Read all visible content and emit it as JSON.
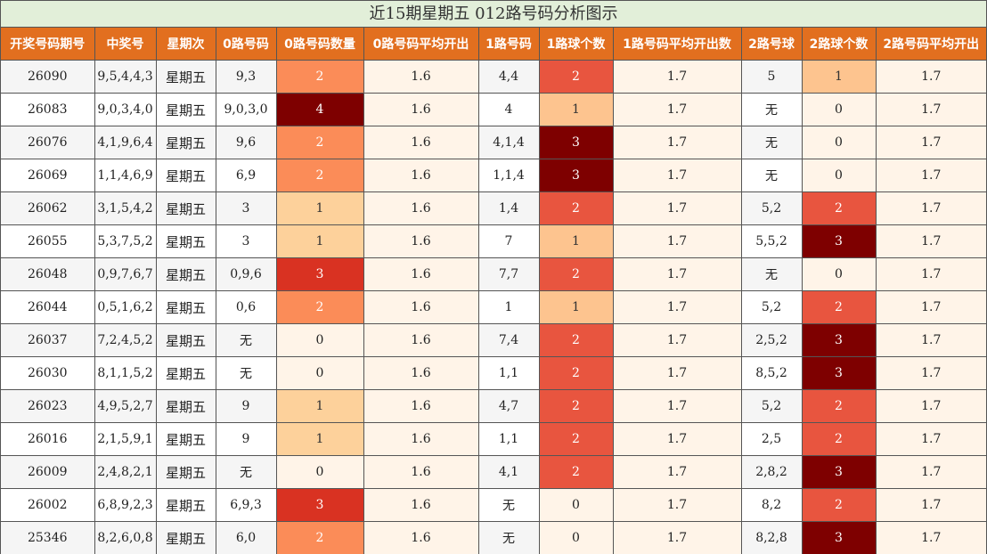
{
  "title": "近15期星期五 012路号码分析图示",
  "headers": [
    "开奖号码期号",
    "中奖号",
    "星期次",
    "0路号码",
    "0路号码数量",
    "0路号码平均开出",
    "1路号码",
    "1路球个数",
    "1路号码平均开出数",
    "2路号球",
    "2路球个数",
    "2路号码平均开出"
  ],
  "rows": [
    [
      "26090",
      "9,5,4,4,3",
      "星期五",
      "9,3",
      "2",
      "1.6",
      "4,4",
      "2",
      "1.7",
      "5",
      "1",
      "1.7"
    ],
    [
      "26083",
      "9,0,3,4,0",
      "星期五",
      "9,0,3,0",
      "4",
      "1.6",
      "4",
      "1",
      "1.7",
      "无",
      "0",
      "1.7"
    ],
    [
      "26076",
      "4,1,9,6,4",
      "星期五",
      "9,6",
      "2",
      "1.6",
      "4,1,4",
      "3",
      "1.7",
      "无",
      "0",
      "1.7"
    ],
    [
      "26069",
      "1,1,4,6,9",
      "星期五",
      "6,9",
      "2",
      "1.6",
      "1,1,4",
      "3",
      "1.7",
      "无",
      "0",
      "1.7"
    ],
    [
      "26062",
      "3,1,5,4,2",
      "星期五",
      "3",
      "1",
      "1.6",
      "1,4",
      "2",
      "1.7",
      "5,2",
      "2",
      "1.7"
    ],
    [
      "26055",
      "5,3,7,5,2",
      "星期五",
      "3",
      "1",
      "1.6",
      "7",
      "1",
      "1.7",
      "5,5,2",
      "3",
      "1.7"
    ],
    [
      "26048",
      "0,9,7,6,7",
      "星期五",
      "0,9,6",
      "3",
      "1.6",
      "7,7",
      "2",
      "1.7",
      "无",
      "0",
      "1.7"
    ],
    [
      "26044",
      "0,5,1,6,2",
      "星期五",
      "0,6",
      "2",
      "1.6",
      "1",
      "1",
      "1.7",
      "5,2",
      "2",
      "1.7"
    ],
    [
      "26037",
      "7,2,4,5,2",
      "星期五",
      "无",
      "0",
      "1.6",
      "7,4",
      "2",
      "1.7",
      "2,5,2",
      "3",
      "1.7"
    ],
    [
      "26030",
      "8,1,1,5,2",
      "星期五",
      "无",
      "0",
      "1.6",
      "1,1",
      "2",
      "1.7",
      "8,5,2",
      "3",
      "1.7"
    ],
    [
      "26023",
      "4,9,5,2,7",
      "星期五",
      "9",
      "1",
      "1.6",
      "4,7",
      "2",
      "1.7",
      "5,2",
      "2",
      "1.7"
    ],
    [
      "26016",
      "2,1,5,9,1",
      "星期五",
      "9",
      "1",
      "1.6",
      "1,1",
      "2",
      "1.7",
      "2,5",
      "2",
      "1.7"
    ],
    [
      "26009",
      "2,4,8,2,1",
      "星期五",
      "无",
      "0",
      "1.6",
      "4,1",
      "2",
      "1.7",
      "2,8,2",
      "3",
      "1.7"
    ],
    [
      "26002",
      "6,8,9,2,3",
      "星期五",
      "6,9,3",
      "3",
      "1.6",
      "无",
      "0",
      "1.7",
      "8,2",
      "2",
      "1.7"
    ],
    [
      "25346",
      "8,2,6,0,8",
      "星期五",
      "6,0",
      "2",
      "1.6",
      "无",
      "0",
      "1.7",
      "8,2,8",
      "3",
      "1.7"
    ]
  ],
  "colors": {
    "header_bg": "#e26f1f",
    "title_bg": "#e2efd9",
    "zero_count_scale": [
      "#fff4e8",
      "#fdd19b",
      "#fb8c58",
      "#d93222",
      "#7e0000"
    ],
    "ball_count_scale": [
      "#fff4e8",
      "#fdc48f",
      "#e8553f",
      "#7e0000"
    ]
  }
}
